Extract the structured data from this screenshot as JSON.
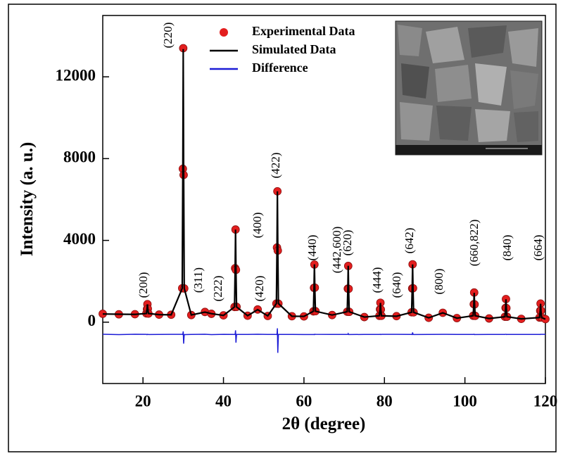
{
  "chart_data": {
    "type": "line",
    "x_label": "2θ (degree)",
    "y_label": "Intensity (a. u.)",
    "xlim": [
      10,
      120
    ],
    "ylim": [
      -3000,
      15000
    ],
    "xticks": [
      20,
      40,
      60,
      80,
      100,
      120
    ],
    "yticks": [
      0,
      4000,
      8000,
      12000
    ],
    "legend": "upper center",
    "annotations": [
      "(200)",
      "(220)",
      "(311)",
      "(222)",
      "(400)",
      "(420)",
      "(422)",
      "(440)",
      "(442,600)",
      "(620)",
      "(444)",
      "(640)",
      "(642)",
      "(800)",
      "(660,822)",
      "(840)",
      "(664)"
    ],
    "x": [
      10,
      14,
      18,
      20.85,
      21,
      21.1,
      21.2,
      21.35,
      24,
      27,
      29.75,
      29.9,
      30,
      30.1,
      30.25,
      32,
      35.4,
      37,
      40,
      42.75,
      42.9,
      43,
      43.1,
      43.25,
      46,
      48.5,
      51,
      53.15,
      53.3,
      53.4,
      53.5,
      53.65,
      57,
      60,
      62.35,
      62.5,
      62.6,
      62.7,
      62.85,
      67,
      70.75,
      70.9,
      71,
      71.1,
      71.25,
      75,
      78.75,
      78.9,
      79,
      79.1,
      79.25,
      83,
      86.75,
      86.9,
      87,
      87.1,
      87.25,
      91,
      94.5,
      98,
      102.05,
      102.2,
      102.3,
      102.4,
      102.55,
      106,
      109.95,
      110.1,
      110.2,
      110.3,
      110.45,
      114,
      118.55,
      118.7,
      118.8,
      118.9,
      119.05,
      120
    ],
    "series": [
      {
        "name": "Experimental Data",
        "color": "#e31e1e",
        "marker": "circle",
        "values": [
          410,
          385,
          390,
          430,
          640,
          880,
          655,
          420,
          370,
          365,
          1660,
          7500,
          13400,
          7200,
          1650,
          350,
          500,
          410,
          335,
          745,
          2640,
          4530,
          2560,
          750,
          318,
          620,
          305,
          910,
          3650,
          6400,
          3500,
          905,
          292,
          282,
          530,
          1680,
          2820,
          1690,
          540,
          350,
          510,
          1640,
          2750,
          1630,
          505,
          250,
          312,
          630,
          950,
          620,
          315,
          295,
          485,
          1650,
          2830,
          1660,
          480,
          215,
          460,
          200,
          315,
          880,
          1450,
          870,
          310,
          182,
          266,
          700,
          1130,
          690,
          268,
          163,
          226,
          560,
          910,
          570,
          230,
          150
        ]
      },
      {
        "name": "Simulated Data",
        "color": "#000000",
        "marker": "line",
        "values": [
          400,
          391,
          382,
          425,
          650,
          875,
          650,
          425,
          368,
          361,
          1656,
          7507,
          13357,
          7507,
          1656,
          352,
          492,
          418,
          331,
          747,
          2637,
          4527,
          2637,
          747,
          317,
          612,
          306,
          911,
          3656,
          6401,
          3656,
          911,
          292,
          285,
          535,
          1682,
          2830,
          1682,
          535,
          350,
          510,
          1635,
          2760,
          1635,
          510,
          251,
          312,
          627,
          942,
          627,
          312,
          292,
          483,
          1653,
          2823,
          1653,
          483,
          214,
          456,
          198,
          314,
          876,
          1439,
          876,
          314,
          180,
          266,
          693,
          1121,
          693,
          266,
          163,
          226,
          564,
          902,
          564,
          226,
          147
        ]
      },
      {
        "name": "Difference",
        "color": "#1c1cd6",
        "marker": "line",
        "values": [
          -590,
          -606,
          -592,
          -595,
          -610,
          -595,
          -595,
          -605,
          -598,
          -596,
          -596,
          -607,
          -450,
          -1050,
          -606,
          -598,
          -592,
          -608,
          -596,
          -598,
          -597,
          -400,
          -1000,
          -597,
          -599,
          -592,
          -601,
          -599,
          -606,
          -300,
          -1500,
          -596,
          -600,
          -603,
          -605,
          -602,
          -610,
          -592,
          -595,
          -600,
          -600,
          -595,
          -560,
          -605,
          -605,
          -599,
          -600,
          -597,
          -592,
          -607,
          -597,
          -597,
          -598,
          -603,
          -500,
          -593,
          -603,
          -599,
          -596,
          -598,
          -599,
          -596,
          -589,
          -606,
          -604,
          -598,
          -600,
          -593,
          -591,
          -603,
          -598,
          -600,
          -600,
          -604,
          -592,
          -594,
          -596,
          -597
        ]
      }
    ]
  }
}
